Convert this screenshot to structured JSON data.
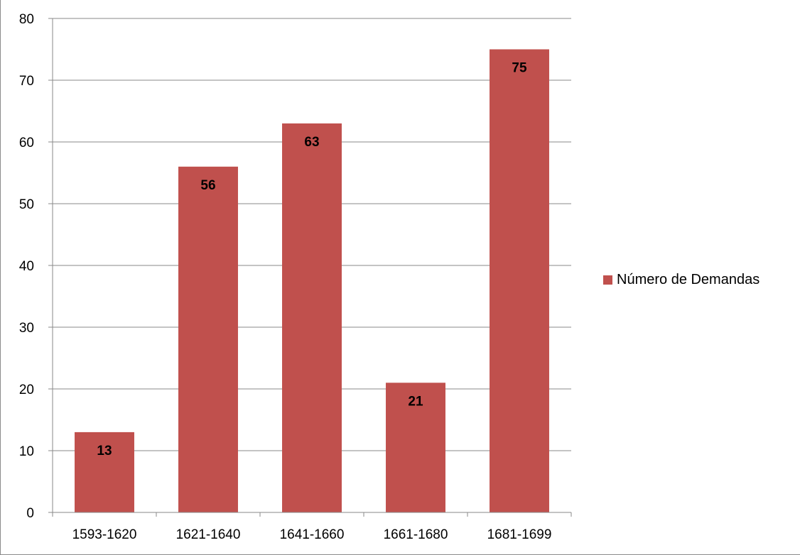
{
  "chart_data": {
    "type": "bar",
    "categories": [
      "1593-1620",
      "1621-1640",
      "1641-1660",
      "1661-1680",
      "1681-1699"
    ],
    "series": [
      {
        "name": "Número de Demandas",
        "values": [
          13,
          56,
          63,
          21,
          75
        ],
        "color": "#C0504D"
      }
    ],
    "data_labels": [
      "13",
      "56",
      "63",
      "21",
      "75"
    ],
    "ylim": [
      0,
      80
    ],
    "yticks": [
      0,
      10,
      20,
      30,
      40,
      50,
      60,
      70,
      80
    ],
    "grid": true,
    "legend": "right"
  }
}
